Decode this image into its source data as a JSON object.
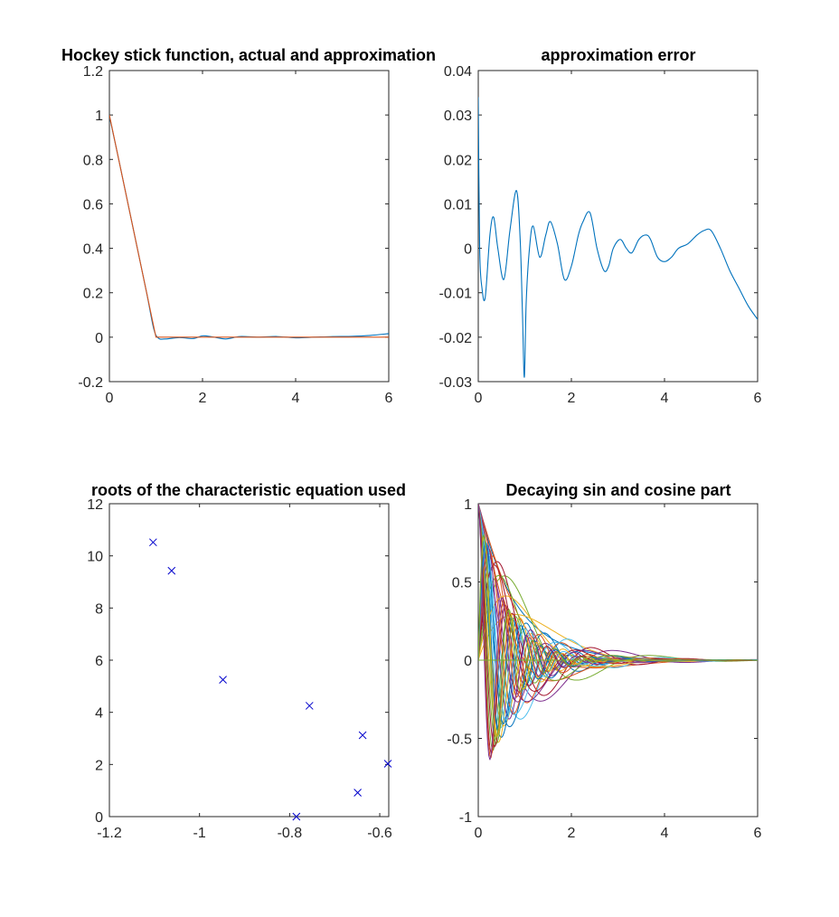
{
  "chart_data": [
    {
      "type": "line",
      "title": "Hockey stick function, actual and approximation",
      "xlim": [
        0,
        6
      ],
      "ylim": [
        -0.2,
        1.2
      ],
      "xticks": [
        "0",
        "2",
        "4",
        "6"
      ],
      "yticks": [
        "-0.2",
        "0",
        "0.2",
        "0.4",
        "0.6",
        "0.8",
        "1",
        "1.2"
      ],
      "series": [
        {
          "color": "#0072BD",
          "x": [
            0,
            0.2,
            0.4,
            0.6,
            0.8,
            0.95,
            1.05,
            1.2,
            1.5,
            1.8,
            2.0,
            2.2,
            2.5,
            2.8,
            3.2,
            3.6,
            4.0,
            4.4,
            4.8,
            5.2,
            5.6,
            6.0
          ],
          "y": [
            0.995,
            0.8,
            0.6,
            0.4,
            0.2,
            0.04,
            -0.004,
            -0.008,
            -0.002,
            -0.006,
            0.006,
            0.002,
            -0.008,
            0.003,
            0.0,
            0.003,
            -0.003,
            0.0,
            0.003,
            0.004,
            0.008,
            0.016
          ]
        },
        {
          "color": "#D95319",
          "x": [
            0,
            1,
            6
          ],
          "y": [
            1,
            0,
            0
          ]
        }
      ]
    },
    {
      "type": "line",
      "title": "approximation error",
      "xlim": [
        0,
        6
      ],
      "ylim": [
        -0.03,
        0.04
      ],
      "xticks": [
        "0",
        "2",
        "4",
        "6"
      ],
      "yticks": [
        "-0.03",
        "-0.02",
        "-0.01",
        "0",
        "0.01",
        "0.02",
        "0.03",
        "0.04"
      ],
      "series": [
        {
          "color": "#0072BD",
          "x": [
            0,
            0.03,
            0.08,
            0.15,
            0.25,
            0.33,
            0.42,
            0.55,
            0.68,
            0.82,
            0.9,
            0.95,
            0.99,
            1.03,
            1.1,
            1.18,
            1.32,
            1.45,
            1.55,
            1.7,
            1.85,
            2.0,
            2.15,
            2.25,
            2.4,
            2.55,
            2.7,
            2.8,
            2.9,
            3.05,
            3.18,
            3.3,
            3.45,
            3.6,
            3.7,
            3.85,
            4.0,
            4.15,
            4.3,
            4.5,
            4.7,
            4.85,
            5.0,
            5.2,
            5.4,
            5.6,
            5.8,
            6.0
          ],
          "y": [
            0.034,
            0.0,
            -0.009,
            -0.011,
            0.003,
            0.007,
            0.0,
            -0.007,
            0.004,
            0.013,
            0.002,
            -0.015,
            -0.029,
            -0.012,
            0.0,
            0.005,
            -0.002,
            0.003,
            0.006,
            0.001,
            -0.007,
            -0.004,
            0.003,
            0.006,
            0.008,
            0.0,
            -0.005,
            -0.004,
            0.0,
            0.002,
            0.0,
            -0.001,
            0.002,
            0.003,
            0.002,
            -0.002,
            -0.003,
            -0.002,
            0.0,
            0.001,
            0.003,
            0.004,
            0.004,
            0.0,
            -0.005,
            -0.009,
            -0.013,
            -0.016
          ]
        }
      ]
    },
    {
      "type": "scatter",
      "title": "roots of the characteristic equation used",
      "xlim": [
        -1.2,
        -0.58
      ],
      "ylim": [
        0,
        12
      ],
      "xticks": [
        "-1.2",
        "-1",
        "-0.8",
        "-0.6"
      ],
      "yticks": [
        "0",
        "2",
        "4",
        "6",
        "8",
        "10",
        "12"
      ],
      "marker": "x",
      "color": "#0000CC",
      "points": [
        {
          "x": -1.103,
          "y": 10.52
        },
        {
          "x": -1.062,
          "y": 9.43
        },
        {
          "x": -0.948,
          "y": 5.25
        },
        {
          "x": -0.785,
          "y": 0.0
        },
        {
          "x": -0.756,
          "y": 4.25
        },
        {
          "x": -0.649,
          "y": 0.92
        },
        {
          "x": -0.638,
          "y": 3.12
        },
        {
          "x": -0.582,
          "y": 2.03
        }
      ]
    },
    {
      "type": "line",
      "title": "Decaying sin and cosine part",
      "xlim": [
        0,
        6
      ],
      "ylim": [
        -1,
        1
      ],
      "xticks": [
        "0",
        "2",
        "4",
        "6"
      ],
      "yticks": [
        "-1",
        "-0.5",
        "0",
        "0.5",
        "1"
      ],
      "model": "exp(a*t)*cos(b*t) and exp(a*t)*sin(b*t) for each root (a,b)",
      "colors": [
        "#0072BD",
        "#D95319",
        "#EDB120",
        "#7E2F8E",
        "#77AC30",
        "#4DBEEE",
        "#A2142F"
      ],
      "samples": 241
    }
  ]
}
